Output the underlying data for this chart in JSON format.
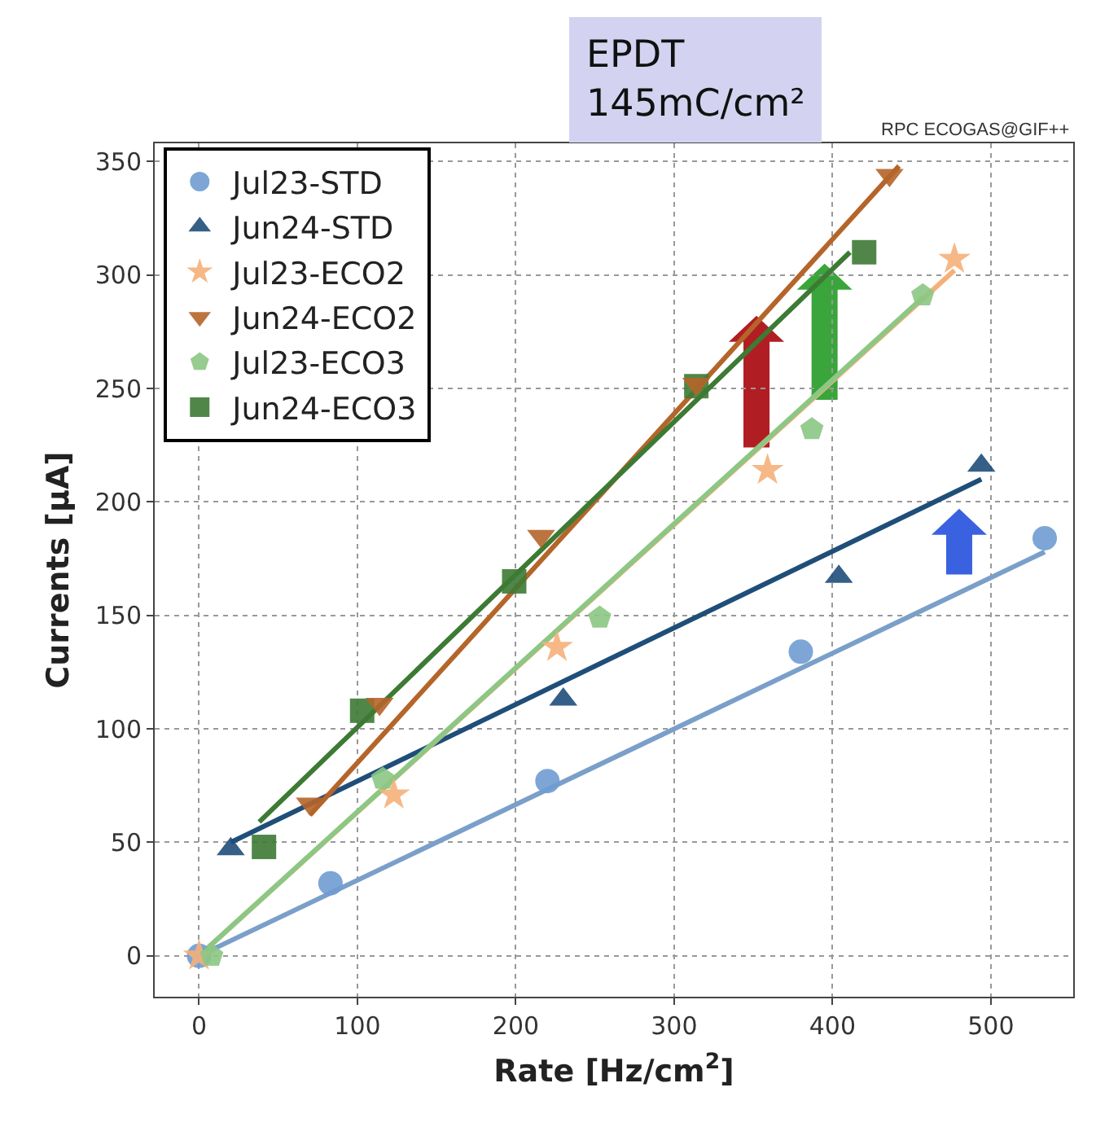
{
  "chart_data": {
    "type": "scatter",
    "xlabel": "Rate [Hz/cm$^{2}$]",
    "ylabel": "Currents [µA]",
    "annotations": [
      "EPDT\n145mC/cm²",
      "RPC ECOGAS@GIF++"
    ],
    "xlim": [
      -28,
      552
    ],
    "ylim": [
      -18,
      358
    ],
    "xticks": [
      0,
      100,
      200,
      300,
      400,
      500
    ],
    "yticks": [
      0,
      50,
      100,
      150,
      200,
      250,
      300,
      350
    ],
    "grid": true,
    "legend": "top left",
    "series": [
      {
        "name": "Jul23-STD",
        "color": "#6f9bd1",
        "marker": "circle",
        "x": [
          0,
          83,
          220,
          380,
          534
        ],
        "values": [
          0,
          32,
          77,
          134,
          184
        ]
      },
      {
        "name": "Jun24-STD",
        "color": "#1f4e79",
        "marker": "triangle",
        "x": [
          20,
          230,
          404,
          494
        ],
        "values": [
          47,
          113,
          167,
          216
        ]
      },
      {
        "name": "Jul23-ECO2",
        "color": "#f5b07a",
        "marker": "star",
        "x": [
          0,
          123,
          226,
          359,
          477
        ],
        "values": [
          0,
          71,
          136,
          214,
          307
        ]
      },
      {
        "name": "Jun24-ECO2",
        "color": "#b5652a",
        "marker": "triangle-down",
        "x": [
          70,
          114,
          216,
          314,
          436
        ],
        "values": [
          67,
          111,
          185,
          252,
          344
        ]
      },
      {
        "name": "Jul23-ECO3",
        "color": "#8cc784",
        "x": [
          8,
          116,
          253,
          387,
          457
        ],
        "values": [
          0,
          78,
          149,
          232,
          291
        ]
      },
      {
        "name": "Jun24-ECO3",
        "color": "#3d7a34",
        "marker": "square",
        "x": [
          41,
          103,
          199,
          314,
          420
        ],
        "values": [
          48,
          108,
          165,
          251,
          310
        ]
      },
      {
        "type": "line",
        "color": "#7a9fc9",
        "x": [
          0,
          534
        ],
        "values": [
          0,
          178
        ]
      },
      {
        "type": "line",
        "color": "#1f4e79",
        "x": [
          20,
          494
        ],
        "values": [
          50,
          210
        ]
      },
      {
        "type": "line",
        "color": "#f5b07a",
        "x": [
          0,
          477
        ],
        "values": [
          0,
          302
        ]
      },
      {
        "type": "line",
        "color": "#b5652a",
        "x": [
          70,
          442
        ],
        "values": [
          62,
          348
        ]
      },
      {
        "type": "line",
        "color": "#8cc784",
        "x": [
          0,
          457
        ],
        "values": [
          0,
          290
        ]
      },
      {
        "type": "line",
        "color": "#3d7a34",
        "x": [
          38,
          411
        ],
        "values": [
          59,
          310
        ]
      }
    ]
  }
}
